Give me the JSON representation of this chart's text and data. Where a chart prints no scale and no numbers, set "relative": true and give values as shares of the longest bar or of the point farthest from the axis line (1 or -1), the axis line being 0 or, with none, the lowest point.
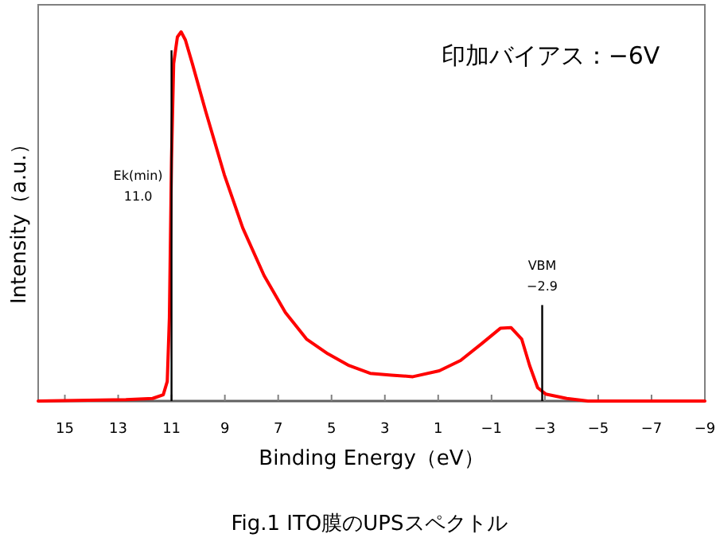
{
  "chart_data": {
    "type": "line",
    "relative": true,
    "xlabel": "Binding Energy（eV）",
    "ylabel": "Intensity（a.u.）",
    "xlim": [
      16,
      -9
    ],
    "xticks": [
      15,
      13,
      11,
      9,
      7,
      5,
      3,
      1,
      -1,
      -3,
      -5,
      -7,
      -9
    ],
    "x": [
      16,
      12.71,
      11.71,
      11.31,
      11.16,
      11.08,
      11.0,
      10.92,
      10.78,
      10.64,
      10.48,
      10.22,
      9.72,
      9.02,
      8.33,
      7.53,
      6.73,
      5.94,
      5.14,
      4.34,
      3.55,
      2.75,
      1.95,
      0.96,
      0.16,
      -0.64,
      -1.33,
      -1.73,
      -2.13,
      -2.43,
      -2.73,
      -3.03,
      -3.82,
      -4.62,
      -9
    ],
    "series": [
      {
        "color": "#ff0000",
        "values": [
          0,
          0.004,
          0.007,
          0.017,
          0.053,
          0.225,
          0.656,
          0.914,
          0.986,
          1,
          0.978,
          0.914,
          0.785,
          0.613,
          0.469,
          0.34,
          0.24,
          0.168,
          0.128,
          0.096,
          0.075,
          0.07,
          0.066,
          0.082,
          0.11,
          0.156,
          0.197,
          0.199,
          0.168,
          0.096,
          0.036,
          0.019,
          0.007,
          0,
          0
        ]
      }
    ],
    "ref_lines": [
      {
        "axis": "x",
        "value": 11.0,
        "label": "Ek(min)\n11.0",
        "color": "#000000"
      },
      {
        "axis": "x",
        "value": -2.9,
        "label": "VBM\n−2.9",
        "color": "#000000"
      }
    ],
    "annotations": [
      "印加バイアス：−6V",
      "Fig.1  ITO膜のUPSスペクトル"
    ],
    "grid": false,
    "marker": "none",
    "line_style": "solid"
  }
}
